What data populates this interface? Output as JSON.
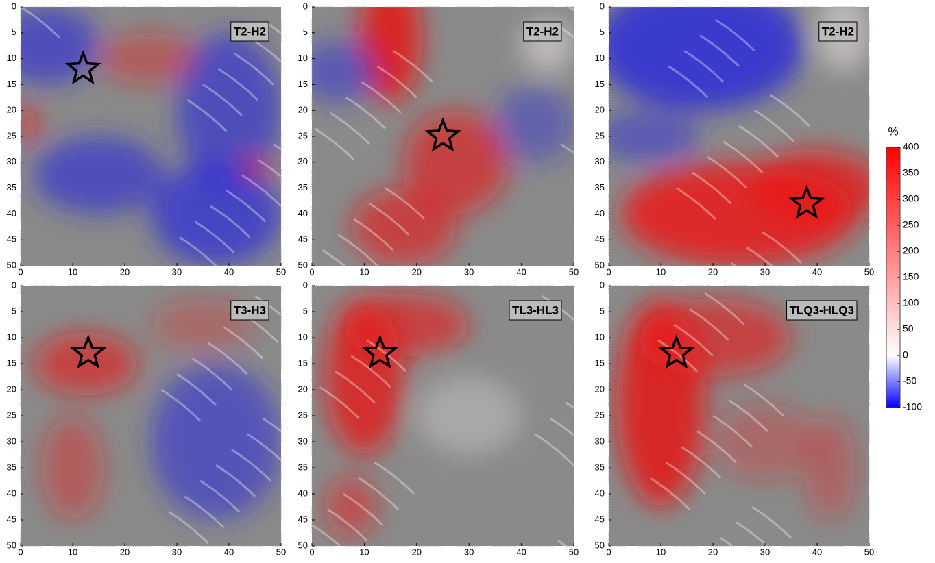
{
  "chart_data": [
    {
      "type": "heatmap",
      "title": "T2-H2",
      "xlim": [
        0,
        50
      ],
      "ylim": [
        50,
        0
      ],
      "xticks": [
        0,
        10,
        20,
        30,
        40,
        50
      ],
      "yticks": [
        0,
        5,
        10,
        15,
        20,
        25,
        30,
        35,
        40,
        45,
        50
      ],
      "marker": {
        "x": 12,
        "y": 12
      }
    },
    {
      "type": "heatmap",
      "title": "T2-H2",
      "xlim": [
        0,
        50
      ],
      "ylim": [
        50,
        0
      ],
      "xticks": [
        0,
        10,
        20,
        30,
        40,
        50
      ],
      "yticks": [
        0,
        5,
        10,
        15,
        20,
        25,
        30,
        35,
        40,
        45,
        50
      ],
      "marker": {
        "x": 25,
        "y": 25
      }
    },
    {
      "type": "heatmap",
      "title": "T2-H2",
      "xlim": [
        0,
        50
      ],
      "ylim": [
        50,
        0
      ],
      "xticks": [
        0,
        10,
        20,
        30,
        40,
        50
      ],
      "yticks": [
        0,
        5,
        10,
        15,
        20,
        25,
        30,
        35,
        40,
        45,
        50
      ],
      "marker": {
        "x": 38,
        "y": 38
      }
    },
    {
      "type": "heatmap",
      "title": "T3-H3",
      "xlim": [
        0,
        50
      ],
      "ylim": [
        50,
        0
      ],
      "xticks": [
        0,
        10,
        20,
        30,
        40,
        50
      ],
      "yticks": [
        0,
        5,
        10,
        15,
        20,
        25,
        30,
        35,
        40,
        45,
        50
      ],
      "marker": {
        "x": 13,
        "y": 13
      }
    },
    {
      "type": "heatmap",
      "title": "TL3-HL3",
      "xlim": [
        0,
        50
      ],
      "ylim": [
        50,
        0
      ],
      "xticks": [
        0,
        10,
        20,
        30,
        40,
        50
      ],
      "yticks": [
        0,
        5,
        10,
        15,
        20,
        25,
        30,
        35,
        40,
        45,
        50
      ],
      "marker": {
        "x": 13,
        "y": 13
      }
    },
    {
      "type": "heatmap",
      "title": "TLQ3-HLQ3",
      "xlim": [
        0,
        50
      ],
      "ylim": [
        50,
        0
      ],
      "xticks": [
        0,
        10,
        20,
        30,
        40,
        50
      ],
      "yticks": [
        0,
        5,
        10,
        15,
        20,
        25,
        30,
        35,
        40,
        45,
        50
      ],
      "marker": {
        "x": 13,
        "y": 13
      }
    },
    {
      "type": "colorbar",
      "title": "%",
      "ylim": [
        -100,
        400
      ],
      "yticks": [
        -100,
        -50,
        0,
        50,
        100,
        150,
        200,
        250,
        300,
        350,
        400
      ],
      "colormap": [
        {
          "value": -100,
          "color": "#0000ff"
        },
        {
          "value": 0,
          "color": "#ffffff"
        },
        {
          "value": 400,
          "color": "#ff0000"
        }
      ]
    }
  ]
}
